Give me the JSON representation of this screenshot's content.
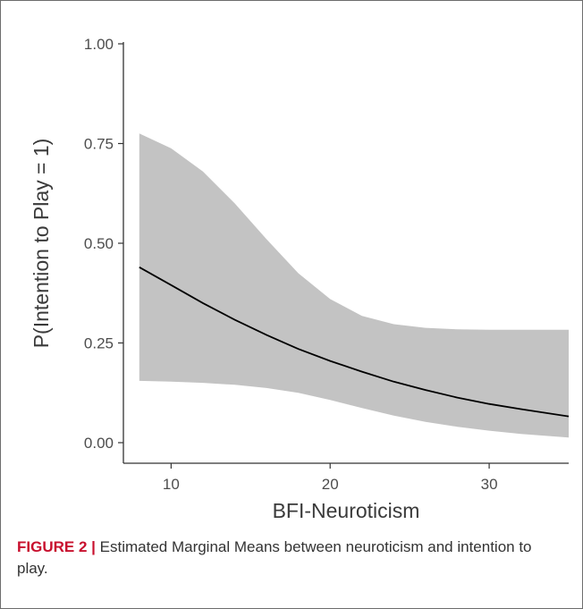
{
  "chart_data": {
    "type": "line",
    "title": "",
    "xlabel": "BFI-Neuroticism",
    "ylabel": "P(Intention to Play  =  1)",
    "xlim": [
      7.0,
      35.0
    ],
    "ylim": [
      0.0,
      1.0
    ],
    "x_ticks": [
      10,
      20,
      30
    ],
    "y_ticks": [
      0.0,
      0.25,
      0.5,
      0.75,
      1.0
    ],
    "x_tick_labels": [
      "10",
      "20",
      "30"
    ],
    "y_tick_labels": [
      "0.00",
      "0.25",
      "0.50",
      "0.75",
      "1.00"
    ],
    "grid": false,
    "legend": "none",
    "series": [
      {
        "x": [
          8,
          10,
          12,
          14,
          16,
          18,
          20,
          22,
          24,
          26,
          28,
          30,
          32,
          35
        ],
        "y": [
          0.44,
          0.395,
          0.35,
          0.308,
          0.27,
          0.235,
          0.205,
          0.178,
          0.153,
          0.132,
          0.113,
          0.097,
          0.084,
          0.066
        ],
        "lower": [
          0.155,
          0.153,
          0.15,
          0.145,
          0.137,
          0.125,
          0.107,
          0.087,
          0.068,
          0.052,
          0.04,
          0.03,
          0.022,
          0.013
        ],
        "upper": [
          0.775,
          0.738,
          0.68,
          0.6,
          0.51,
          0.425,
          0.36,
          0.318,
          0.297,
          0.288,
          0.284,
          0.283,
          0.283,
          0.283
        ]
      }
    ],
    "colors": {
      "line": "#000000",
      "band": "#c3c3c3",
      "axis": "#333333"
    }
  },
  "caption": {
    "label": "FIGURE 2",
    "separator": "|",
    "text": "Estimated Marginal Means between neuroticism and intention to play."
  }
}
